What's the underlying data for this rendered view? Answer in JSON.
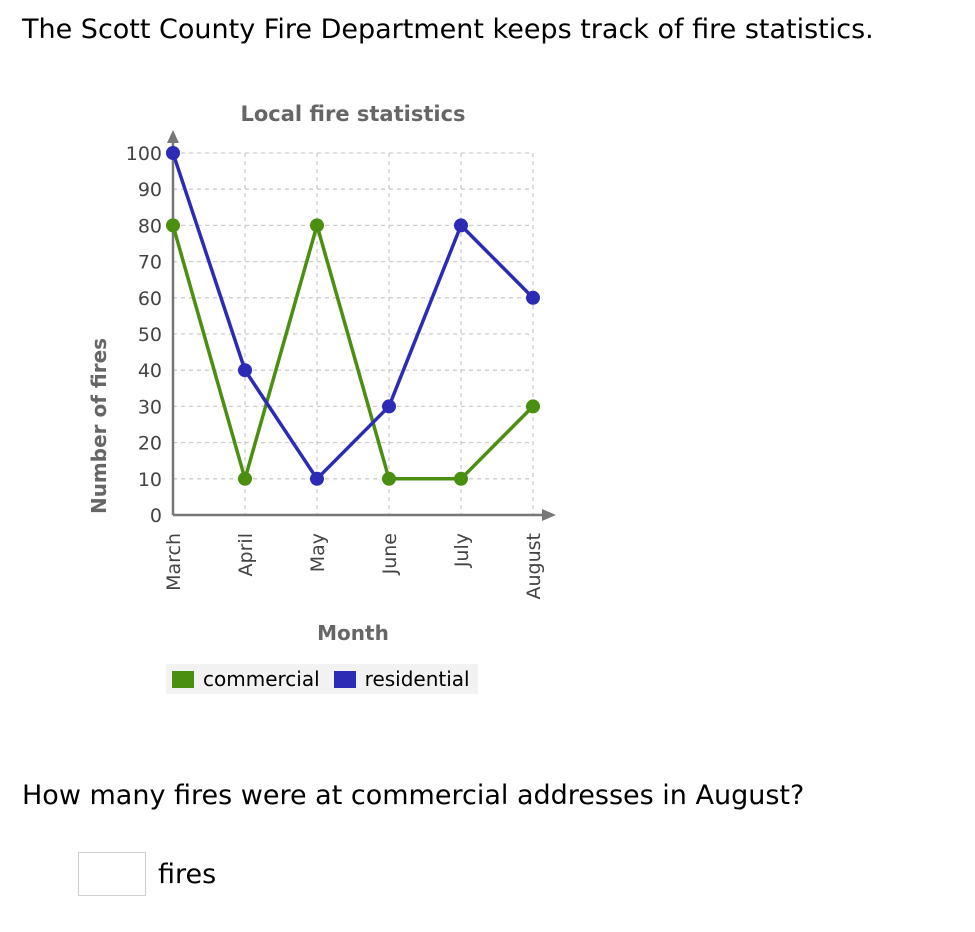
{
  "intro": "The Scott County Fire Department keeps track of fire statistics.",
  "question": "How many fires were at commercial addresses in August?",
  "answer": {
    "value": "",
    "unit": "fires"
  },
  "colors": {
    "commercial": "#4a8f10",
    "residential": "#2b2bb5",
    "axis": "#777777",
    "grid": "#cccccc",
    "text": "#666666"
  },
  "chart_data": {
    "type": "line",
    "title": "Local fire statistics",
    "xlabel": "Month",
    "ylabel": "Number of fires",
    "categories": [
      "March",
      "April",
      "May",
      "June",
      "July",
      "August"
    ],
    "ylim": [
      0,
      100
    ],
    "yticks": [
      0,
      10,
      20,
      30,
      40,
      50,
      60,
      70,
      80,
      90,
      100
    ],
    "grid": true,
    "legend_position": "bottom",
    "series": [
      {
        "name": "commercial",
        "values": [
          80,
          10,
          80,
          10,
          10,
          30
        ]
      },
      {
        "name": "residential",
        "values": [
          100,
          40,
          10,
          30,
          80,
          60
        ]
      }
    ]
  }
}
